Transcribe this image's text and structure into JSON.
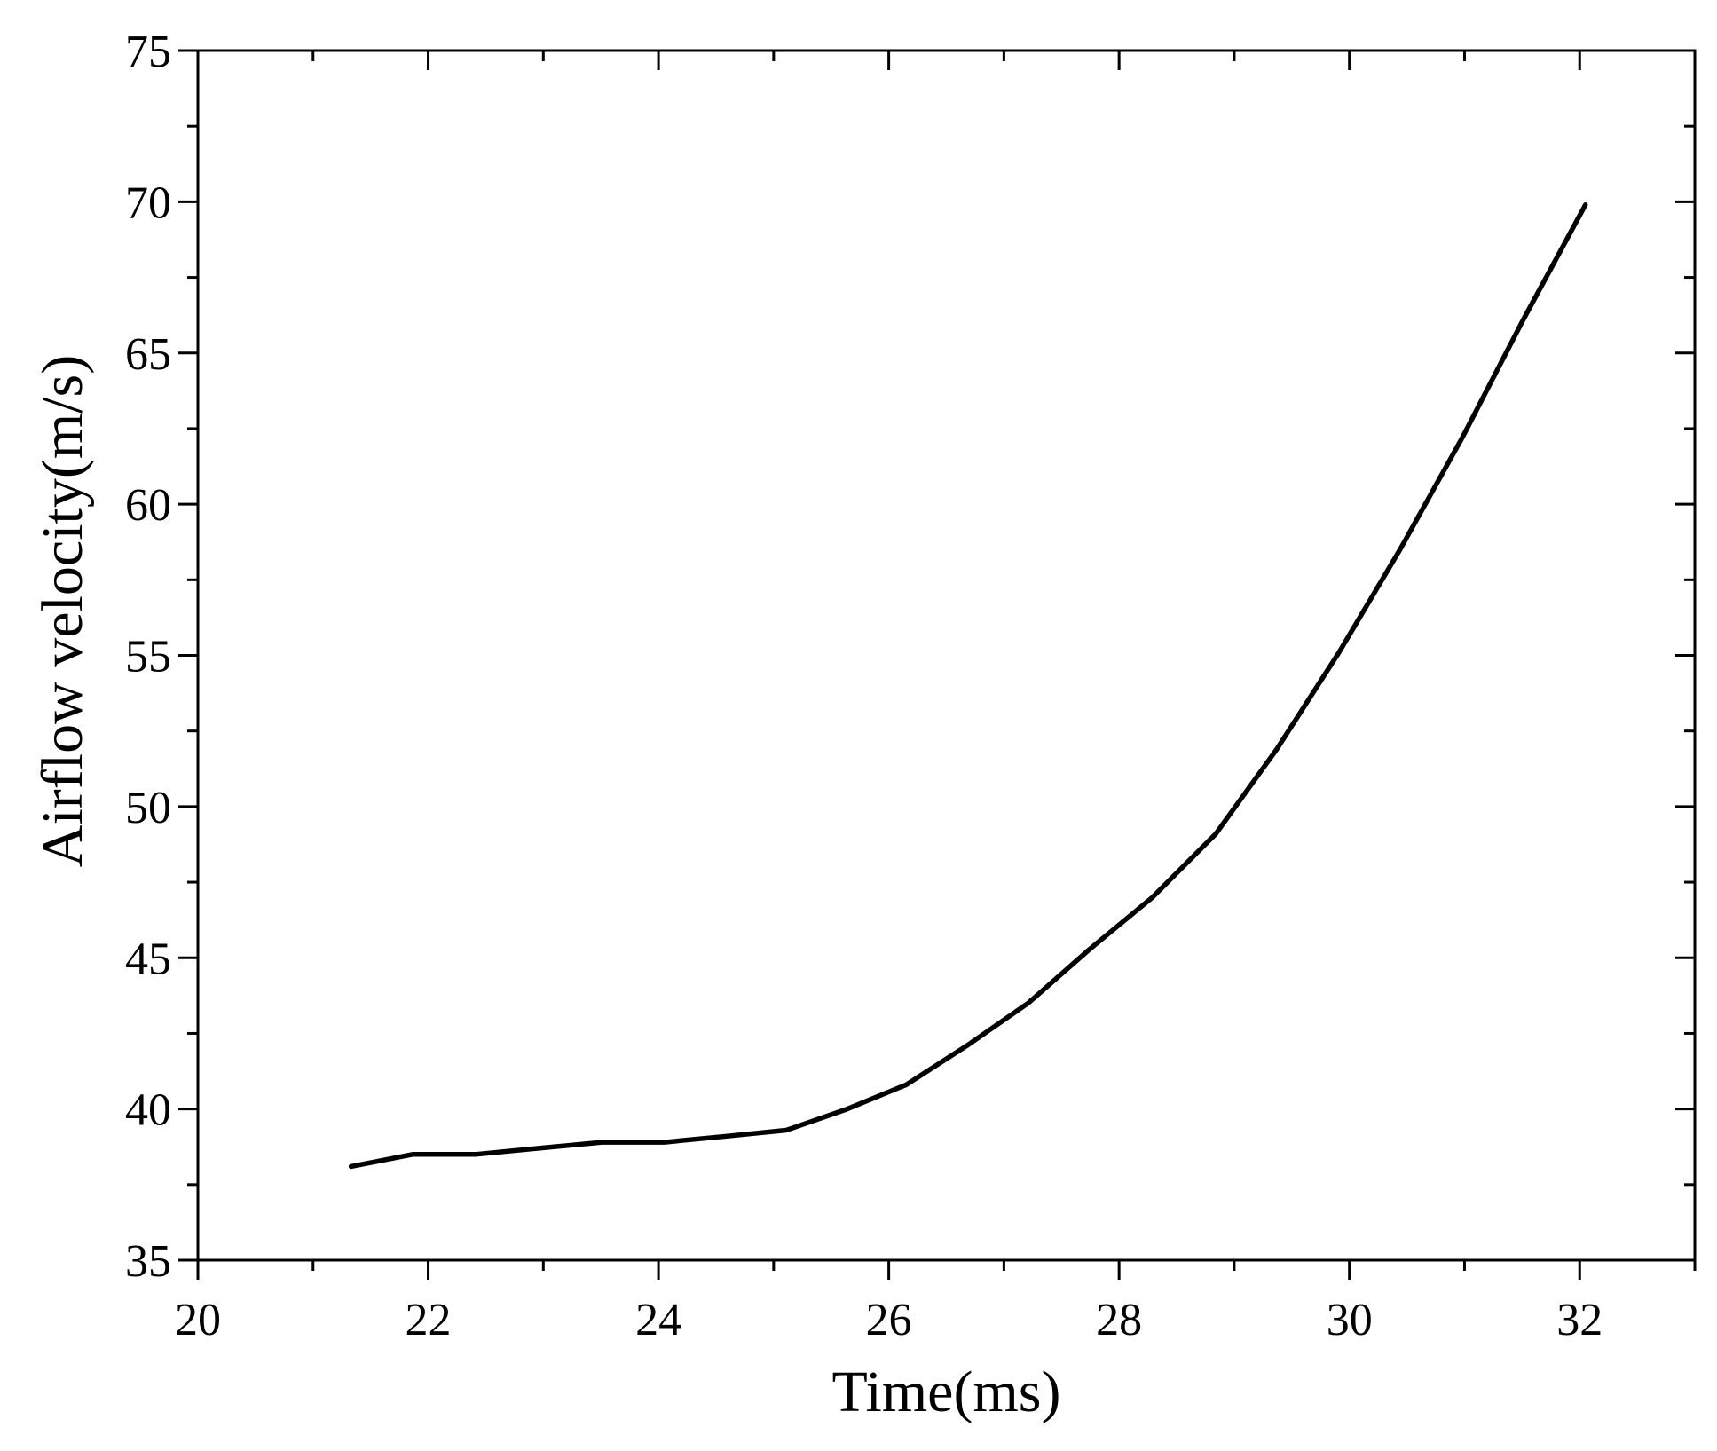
{
  "chart_data": {
    "type": "line",
    "xlabel": "Time(ms)",
    "ylabel": "Airflow velocity(m/s)",
    "xlim": [
      20,
      33
    ],
    "ylim": [
      35,
      75
    ],
    "x_major_ticks": [
      20,
      22,
      24,
      26,
      28,
      30,
      32
    ],
    "x_tick_labels": [
      "20",
      "22",
      "24",
      "26",
      "28",
      "30",
      "32"
    ],
    "y_major_ticks": [
      35,
      40,
      45,
      50,
      55,
      60,
      65,
      70,
      75
    ],
    "y_tick_labels": [
      "35",
      "40",
      "45",
      "50",
      "55",
      "60",
      "65",
      "70",
      "75"
    ],
    "grid": false,
    "legend": "none",
    "line_color": "#000000",
    "series": [
      {
        "x": [
          21.33,
          21.87,
          22.42,
          22.96,
          23.51,
          24.05,
          24.59,
          25.11,
          25.64,
          26.15,
          26.68,
          27.21,
          27.75,
          28.29,
          28.84,
          29.37,
          29.91,
          30.44,
          30.98,
          31.51,
          32.05
        ],
        "values": [
          38.1,
          38.5,
          38.5,
          38.7,
          38.9,
          38.9,
          39.1,
          39.3,
          40.0,
          40.8,
          42.1,
          43.5,
          45.3,
          47.0,
          49.1,
          51.9,
          55.1,
          58.5,
          62.2,
          66.1,
          69.9
        ]
      }
    ]
  }
}
